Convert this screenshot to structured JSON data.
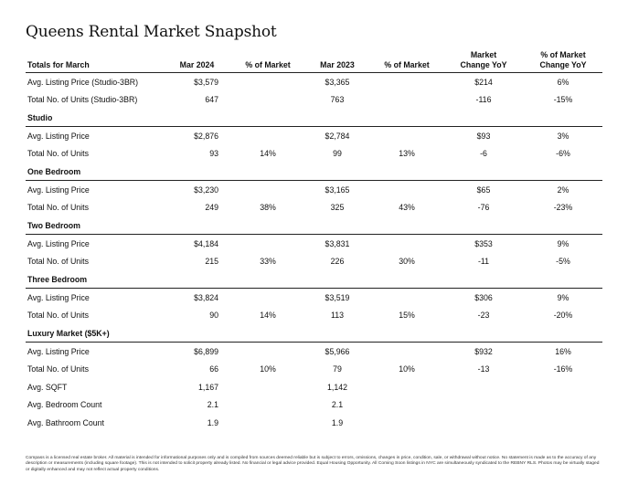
{
  "title": "Queens Rental Market Snapshot",
  "columns": [
    "Totals for March",
    "Mar 2024",
    "% of Market",
    "Mar 2023",
    "% of Market",
    "Market\nChange YoY",
    "% of Market\nChange YoY"
  ],
  "rows": [
    {
      "type": "data",
      "label": "Avg. Listing Price (Studio-3BR)",
      "mar2024": "$3,579",
      "pct2024": "",
      "mar2023": "$3,365",
      "pct2023": "",
      "change": "$214",
      "pct_change": "6%"
    },
    {
      "type": "data",
      "label": "Total No. of Units (Studio-3BR)",
      "mar2024": "647",
      "pct2024": "",
      "mar2023": "763",
      "pct2023": "",
      "change": "-116",
      "pct_change": "-15%"
    },
    {
      "type": "section",
      "label": "Studio"
    },
    {
      "type": "data",
      "label": "Avg. Listing Price",
      "mar2024": "$2,876",
      "pct2024": "",
      "mar2023": "$2,784",
      "pct2023": "",
      "change": "$93",
      "pct_change": "3%"
    },
    {
      "type": "data",
      "label": "Total No. of Units",
      "mar2024": "93",
      "pct2024": "14%",
      "mar2023": "99",
      "pct2023": "13%",
      "change": "-6",
      "pct_change": "-6%"
    },
    {
      "type": "section",
      "label": "One Bedroom"
    },
    {
      "type": "data",
      "label": "Avg. Listing Price",
      "mar2024": "$3,230",
      "pct2024": "",
      "mar2023": "$3,165",
      "pct2023": "",
      "change": "$65",
      "pct_change": "2%"
    },
    {
      "type": "data",
      "label": "Total No. of Units",
      "mar2024": "249",
      "pct2024": "38%",
      "mar2023": "325",
      "pct2023": "43%",
      "change": "-76",
      "pct_change": "-23%"
    },
    {
      "type": "section",
      "label": "Two Bedroom"
    },
    {
      "type": "data",
      "label": "Avg. Listing Price",
      "mar2024": "$4,184",
      "pct2024": "",
      "mar2023": "$3,831",
      "pct2023": "",
      "change": "$353",
      "pct_change": "9%"
    },
    {
      "type": "data",
      "label": "Total No. of Units",
      "mar2024": "215",
      "pct2024": "33%",
      "mar2023": "226",
      "pct2023": "30%",
      "change": "-11",
      "pct_change": "-5%"
    },
    {
      "type": "section",
      "label": "Three Bedroom"
    },
    {
      "type": "data",
      "label": "Avg. Listing Price",
      "mar2024": "$3,824",
      "pct2024": "",
      "mar2023": "$3,519",
      "pct2023": "",
      "change": "$306",
      "pct_change": "9%"
    },
    {
      "type": "data",
      "label": "Total No. of Units",
      "mar2024": "90",
      "pct2024": "14%",
      "mar2023": "113",
      "pct2023": "15%",
      "change": "-23",
      "pct_change": "-20%"
    },
    {
      "type": "section",
      "label": "Luxury Market ($5K+)"
    },
    {
      "type": "data",
      "label": "Avg. Listing Price",
      "mar2024": "$6,899",
      "pct2024": "",
      "mar2023": "$5,966",
      "pct2023": "",
      "change": "$932",
      "pct_change": "16%"
    },
    {
      "type": "data",
      "label": "Total No. of Units",
      "mar2024": "66",
      "pct2024": "10%",
      "mar2023": "79",
      "pct2023": "10%",
      "change": "-13",
      "pct_change": "-16%"
    },
    {
      "type": "data",
      "label": "Avg. SQFT",
      "mar2024": "1,167",
      "pct2024": "",
      "mar2023": "1,142",
      "pct2023": "",
      "change": "",
      "pct_change": ""
    },
    {
      "type": "data",
      "label": "Avg. Bedroom Count",
      "mar2024": "2.1",
      "pct2024": "",
      "mar2023": "2.1",
      "pct2023": "",
      "change": "",
      "pct_change": ""
    },
    {
      "type": "data",
      "label": "Avg. Bathroom Count",
      "mar2024": "1.9",
      "pct2024": "",
      "mar2023": "1.9",
      "pct2023": "",
      "change": "",
      "pct_change": ""
    }
  ],
  "footer": "Compass is a licensed real estate broker. All material is intended for informational purposes only and is compiled from sources deemed reliable but is subject to errors, omissions, changes in price, condition, sale, or withdrawal without notice. No statement is made as to the accuracy of any description or measurements (including square footage). This is not intended to solicit property already listed. No financial or legal advice provided. Equal Housing Opportunity. All Coming Soon listings in NYC are simultaneously syndicated to the REBNY RLS. Photos may be virtually staged or digitally enhanced and may not reflect actual property conditions."
}
